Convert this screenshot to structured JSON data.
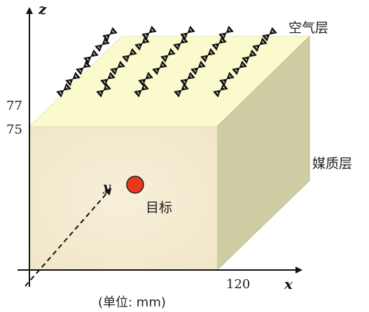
{
  "axes": {
    "z_label": "z",
    "x_label": "x",
    "y_label": "y",
    "z_ticks": [
      "77",
      "75"
    ],
    "x_tick": "120"
  },
  "layers": {
    "air": "空气层",
    "medium": "媒质层"
  },
  "target_label": "目标",
  "unit_label": "(单位: mm)",
  "colors": {
    "front_face": "#f5ecd2",
    "top_face": "#fbfacd",
    "side_face": "#cfcda3",
    "target": "#e8391b",
    "axis": "#111111"
  },
  "antenna_icon": "bowtie-antenna-icon"
}
